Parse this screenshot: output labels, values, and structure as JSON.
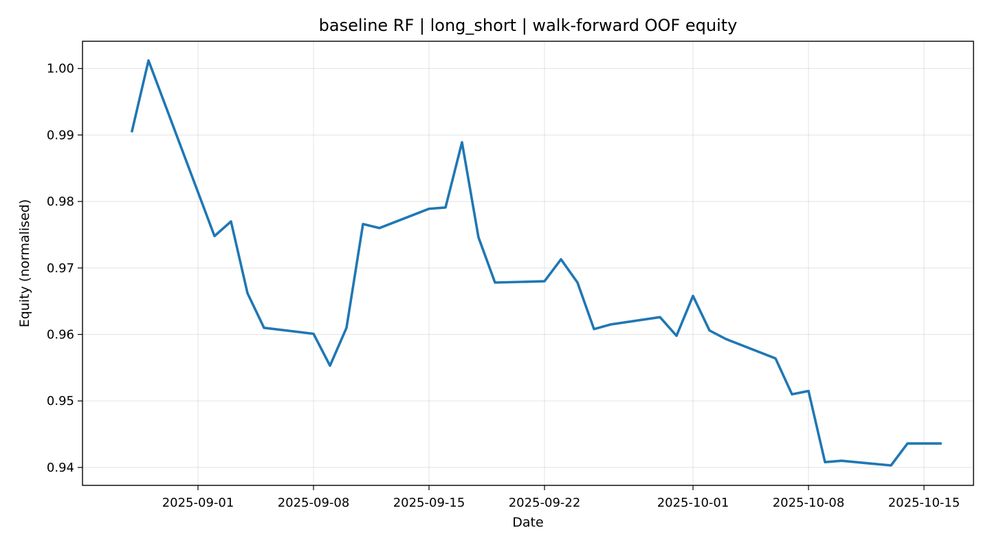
{
  "chart_data": {
    "type": "line",
    "title": "baseline RF | long_short | walk-forward OOF equity",
    "xlabel": "Date",
    "ylabel": "Equity (normalised)",
    "grid": true,
    "legend": "none",
    "color": "#1f77b4",
    "xlim": [
      "2025-08-25",
      "2025-10-18"
    ],
    "ylim": [
      0.9373,
      1.0041
    ],
    "x_ticks": [
      "2025-09-01",
      "2025-09-08",
      "2025-09-15",
      "2025-09-22",
      "2025-10-01",
      "2025-10-08",
      "2025-10-15"
    ],
    "y_ticks": [
      "0.94",
      "0.95",
      "0.96",
      "0.97",
      "0.98",
      "0.99",
      "1.00"
    ],
    "series": [
      {
        "x": [
          "2025-08-28",
          "2025-08-29",
          "2025-09-02",
          "2025-09-03",
          "2025-09-04",
          "2025-09-05",
          "2025-09-08",
          "2025-09-09",
          "2025-09-10",
          "2025-09-11",
          "2025-09-12",
          "2025-09-15",
          "2025-09-16",
          "2025-09-17",
          "2025-09-18",
          "2025-09-19",
          "2025-09-22",
          "2025-09-23",
          "2025-09-24",
          "2025-09-25",
          "2025-09-26",
          "2025-09-29",
          "2025-09-30",
          "2025-10-01",
          "2025-10-02",
          "2025-10-03",
          "2025-10-06",
          "2025-10-07",
          "2025-10-08",
          "2025-10-09",
          "2025-10-10",
          "2025-10-13",
          "2025-10-14",
          "2025-10-15",
          "2025-10-16"
        ],
        "y": [
          0.9906,
          1.0012,
          0.9748,
          0.977,
          0.9662,
          0.961,
          0.9601,
          0.9553,
          0.961,
          0.9766,
          0.976,
          0.9789,
          0.9791,
          0.9889,
          0.9746,
          0.9678,
          0.968,
          0.9713,
          0.9678,
          0.9608,
          0.9615,
          0.9626,
          0.9598,
          0.9658,
          0.9606,
          0.9593,
          0.9564,
          0.951,
          0.9515,
          0.9408,
          0.941,
          0.9403,
          0.9436,
          0.9436,
          0.9436
        ]
      }
    ]
  }
}
